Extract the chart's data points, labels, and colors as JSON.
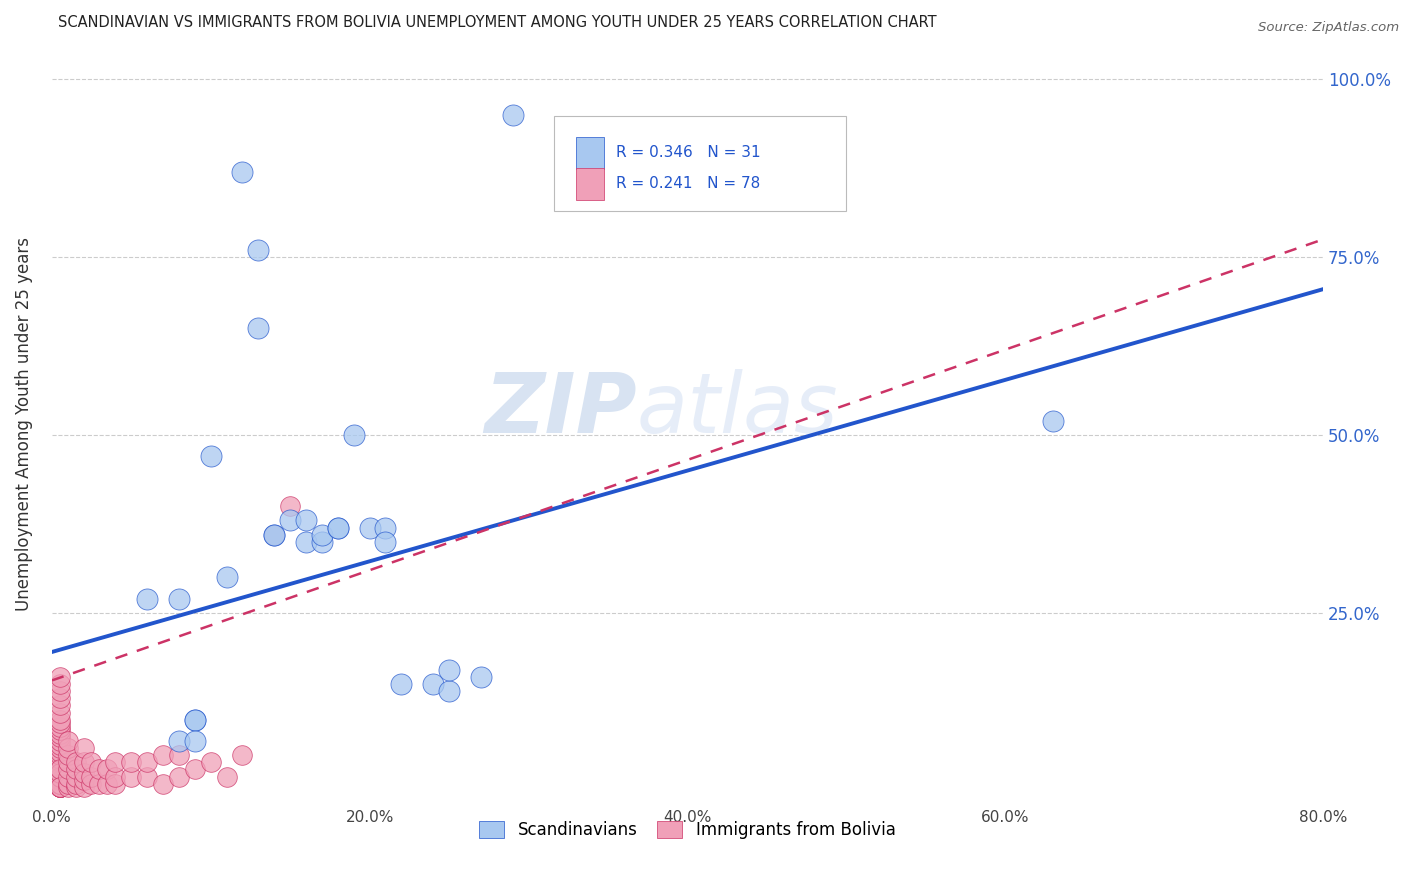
{
  "title": "SCANDINAVIAN VS IMMIGRANTS FROM BOLIVIA UNEMPLOYMENT AMONG YOUTH UNDER 25 YEARS CORRELATION CHART",
  "source": "Source: ZipAtlas.com",
  "ylabel": "Unemployment Among Youth under 25 years",
  "xlim": [
    0.0,
    0.8
  ],
  "ylim": [
    -0.02,
    1.05
  ],
  "xtick_labels": [
    "0.0%",
    "",
    "20.0%",
    "",
    "40.0%",
    "",
    "60.0%",
    "",
    "80.0%"
  ],
  "xtick_values": [
    0.0,
    0.1,
    0.2,
    0.3,
    0.4,
    0.5,
    0.6,
    0.7,
    0.8
  ],
  "ytick_labels": [
    "25.0%",
    "50.0%",
    "75.0%",
    "100.0%"
  ],
  "ytick_values": [
    0.25,
    0.5,
    0.75,
    1.0
  ],
  "legend_label1": "Scandinavians",
  "legend_label2": "Immigrants from Bolivia",
  "R1": "0.346",
  "N1": "31",
  "R2": "0.241",
  "N2": "78",
  "color_scandinavian": "#a8c8f0",
  "color_bolivia": "#f0a0b8",
  "line_color_scandinavian": "#2255cc",
  "line_color_bolivia": "#cc3366",
  "watermark_zip": "ZIP",
  "watermark_atlas": "atlas",
  "scand_line_x0": 0.0,
  "scand_line_y0": 0.195,
  "scand_line_x1": 0.8,
  "scand_line_y1": 0.705,
  "boliv_line_x0": 0.0,
  "boliv_line_y0": 0.155,
  "boliv_line_x1": 0.8,
  "boliv_line_y1": 0.775,
  "scandinavian_x": [
    0.06,
    0.08,
    0.09,
    0.09,
    0.1,
    0.11,
    0.12,
    0.13,
    0.13,
    0.14,
    0.14,
    0.15,
    0.16,
    0.16,
    0.17,
    0.17,
    0.18,
    0.18,
    0.19,
    0.2,
    0.21,
    0.21,
    0.22,
    0.24,
    0.25,
    0.25,
    0.27,
    0.29,
    0.63,
    0.08,
    0.09
  ],
  "scandinavian_y": [
    0.27,
    0.27,
    0.1,
    0.1,
    0.47,
    0.3,
    0.87,
    0.76,
    0.65,
    0.36,
    0.36,
    0.38,
    0.38,
    0.35,
    0.35,
    0.36,
    0.37,
    0.37,
    0.5,
    0.37,
    0.37,
    0.35,
    0.15,
    0.15,
    0.14,
    0.17,
    0.16,
    0.95,
    0.52,
    0.07,
    0.07
  ],
  "bolivia_x": [
    0.005,
    0.005,
    0.005,
    0.005,
    0.005,
    0.005,
    0.005,
    0.005,
    0.005,
    0.005,
    0.005,
    0.005,
    0.005,
    0.005,
    0.005,
    0.005,
    0.005,
    0.005,
    0.005,
    0.005,
    0.005,
    0.005,
    0.005,
    0.005,
    0.005,
    0.005,
    0.005,
    0.005,
    0.005,
    0.005,
    0.005,
    0.005,
    0.005,
    0.005,
    0.005,
    0.005,
    0.01,
    0.01,
    0.01,
    0.01,
    0.01,
    0.01,
    0.01,
    0.01,
    0.015,
    0.015,
    0.015,
    0.015,
    0.015,
    0.02,
    0.02,
    0.02,
    0.02,
    0.02,
    0.025,
    0.025,
    0.025,
    0.03,
    0.03,
    0.035,
    0.035,
    0.04,
    0.04,
    0.04,
    0.05,
    0.05,
    0.06,
    0.06,
    0.07,
    0.07,
    0.08,
    0.08,
    0.09,
    0.1,
    0.11,
    0.12,
    0.14,
    0.15
  ],
  "bolivia_y": [
    0.005,
    0.01,
    0.015,
    0.02,
    0.03,
    0.04,
    0.045,
    0.05,
    0.055,
    0.06,
    0.065,
    0.07,
    0.075,
    0.08,
    0.085,
    0.09,
    0.095,
    0.1,
    0.11,
    0.12,
    0.13,
    0.14,
    0.15,
    0.16,
    0.005,
    0.005,
    0.005,
    0.005,
    0.01,
    0.01,
    0.01,
    0.01,
    0.02,
    0.025,
    0.03,
    0.005,
    0.005,
    0.01,
    0.02,
    0.03,
    0.04,
    0.05,
    0.06,
    0.07,
    0.005,
    0.01,
    0.02,
    0.03,
    0.04,
    0.005,
    0.015,
    0.025,
    0.04,
    0.06,
    0.01,
    0.02,
    0.04,
    0.01,
    0.03,
    0.01,
    0.03,
    0.01,
    0.02,
    0.04,
    0.02,
    0.04,
    0.02,
    0.04,
    0.01,
    0.05,
    0.02,
    0.05,
    0.03,
    0.04,
    0.02,
    0.05,
    0.36,
    0.4
  ]
}
